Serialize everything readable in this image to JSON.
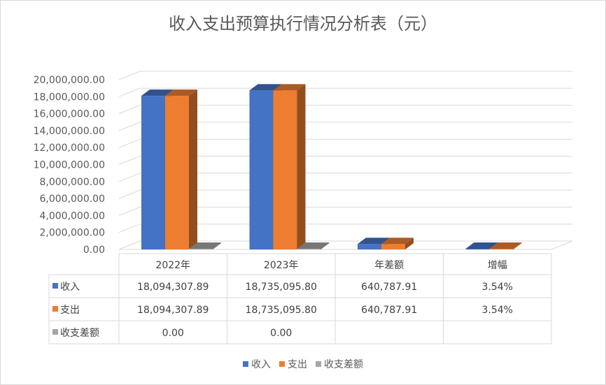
{
  "chart_data": {
    "type": "bar",
    "title": "收入支出预算执行情况分析表（元）",
    "categories": [
      "2022年",
      "2023年",
      "年差额",
      "增幅"
    ],
    "series": [
      {
        "name": "收入",
        "color": "#4472c4",
        "values": [
          18094307.89,
          18735095.8,
          640787.91,
          0.0354
        ],
        "labels": [
          "18,094,307.89",
          "18,735,095.80",
          "640,787.91",
          "3.54%"
        ]
      },
      {
        "name": "支出",
        "color": "#ed7d31",
        "values": [
          18094307.89,
          18735095.8,
          640787.91,
          0.0354
        ],
        "labels": [
          "18,094,307.89",
          "18,735,095.80",
          "640,787.91",
          "3.54%"
        ]
      },
      {
        "name": "收支差额",
        "color": "#a5a5a5",
        "values": [
          0,
          0,
          null,
          null
        ],
        "labels": [
          "0.00",
          "0.00",
          "",
          ""
        ]
      }
    ],
    "ylim": [
      0,
      20000000
    ],
    "ytick_step": 2000000,
    "y_tick_labels": [
      "0.00",
      "2,000,000.00",
      "4,000,000.00",
      "6,000,000.00",
      "8,000,000.00",
      "10,000,000.00",
      "12,000,000.00",
      "14,000,000.00",
      "16,000,000.00",
      "18,000,000.00",
      "20,000,000.00"
    ],
    "grid": true,
    "data_table": true,
    "legend": "bottom",
    "style": "3d-clustered-column"
  }
}
